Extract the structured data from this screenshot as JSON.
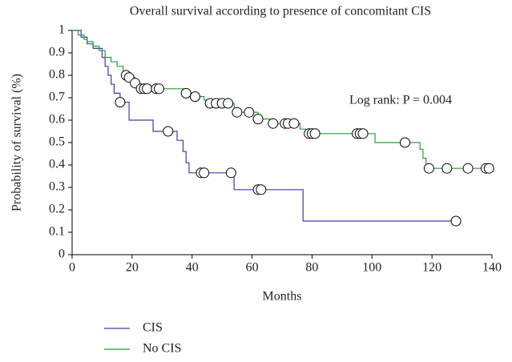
{
  "chart_data": {
    "type": "step",
    "title": "Overall survival according to presence of concomitant CIS",
    "x_label": "Months",
    "y_label": "Probability of survival (%)",
    "annotation": "Log rank: P = 0.004",
    "xlim": [
      0,
      140
    ],
    "xticks": [
      0,
      20,
      40,
      60,
      80,
      100,
      120,
      140
    ],
    "ylim": [
      0,
      1
    ],
    "yticks": [
      0,
      0.1,
      0.2,
      0.3,
      0.4,
      0.5,
      0.6,
      0.7,
      0.8,
      0.9,
      1
    ],
    "series": [
      {
        "name": "CIS",
        "color": "#3b3fa0",
        "x": [
          0,
          3,
          5,
          7,
          10,
          11,
          12,
          13,
          14,
          16,
          19,
          27,
          35,
          37,
          38,
          39,
          54,
          77,
          128
        ],
        "values": [
          1,
          0.97,
          0.94,
          0.92,
          0.88,
          0.84,
          0.8,
          0.76,
          0.72,
          0.68,
          0.6,
          0.55,
          0.51,
          0.46,
          0.41,
          0.365,
          0.29,
          0.15,
          0.15
        ],
        "censored": {
          "x": [
            16,
            32,
            43,
            44,
            53,
            62,
            63,
            128
          ],
          "values": [
            0.68,
            0.55,
            0.365,
            0.365,
            0.365,
            0.29,
            0.29,
            0.15
          ]
        }
      },
      {
        "name": "No CIS",
        "color": "#2e9a3a",
        "x": [
          0,
          2,
          4,
          5,
          7,
          9,
          11,
          13,
          15,
          17,
          19,
          21,
          22,
          38,
          41,
          44,
          46,
          54,
          62,
          66,
          76,
          78,
          101,
          116,
          117,
          118,
          139
        ],
        "values": [
          1,
          0.98,
          0.96,
          0.95,
          0.93,
          0.91,
          0.88,
          0.86,
          0.84,
          0.8,
          0.79,
          0.765,
          0.74,
          0.72,
          0.705,
          0.69,
          0.675,
          0.635,
          0.605,
          0.585,
          0.56,
          0.54,
          0.5,
          0.47,
          0.43,
          0.385,
          0.385
        ],
        "censored": {
          "x": [
            18,
            19,
            21,
            23,
            24,
            25,
            28,
            29,
            38,
            41,
            46,
            48,
            50,
            52,
            55,
            59,
            62,
            67,
            71,
            72,
            74,
            79,
            80,
            81,
            95,
            96,
            97,
            111,
            119,
            125,
            132,
            138,
            139
          ],
          "values": [
            0.8,
            0.79,
            0.765,
            0.74,
            0.74,
            0.74,
            0.74,
            0.74,
            0.72,
            0.705,
            0.675,
            0.675,
            0.675,
            0.675,
            0.635,
            0.635,
            0.605,
            0.585,
            0.585,
            0.585,
            0.585,
            0.54,
            0.54,
            0.54,
            0.54,
            0.54,
            0.54,
            0.5,
            0.385,
            0.385,
            0.385,
            0.385,
            0.385
          ]
        }
      }
    ]
  }
}
